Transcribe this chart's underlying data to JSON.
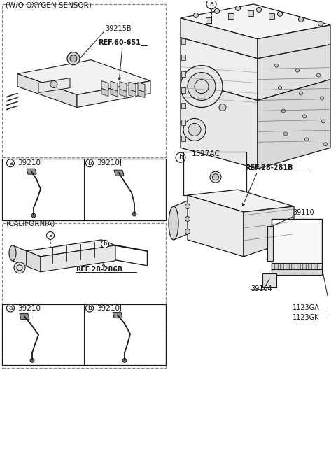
{
  "bg_color": "#ffffff",
  "line_color": "#1a1a1a",
  "wo_oxygen_label": "(W/O OXYGEN SENSOR)",
  "part_39215B": "39215B",
  "ref_60651": "REF.60-651",
  "part_39210": "39210",
  "part_39210J": "39210J",
  "california_label": "(CALIFORNIA)",
  "ref_28286B": "REF.28-286B",
  "part_1327AC": "1327AC",
  "ref_28281B": "REF.28-281B",
  "part_39110": "39110",
  "part_39164": "39164",
  "part_1123GA": "1123GA",
  "part_1123GK": "1123GK",
  "label_a": "a",
  "label_b": "b"
}
